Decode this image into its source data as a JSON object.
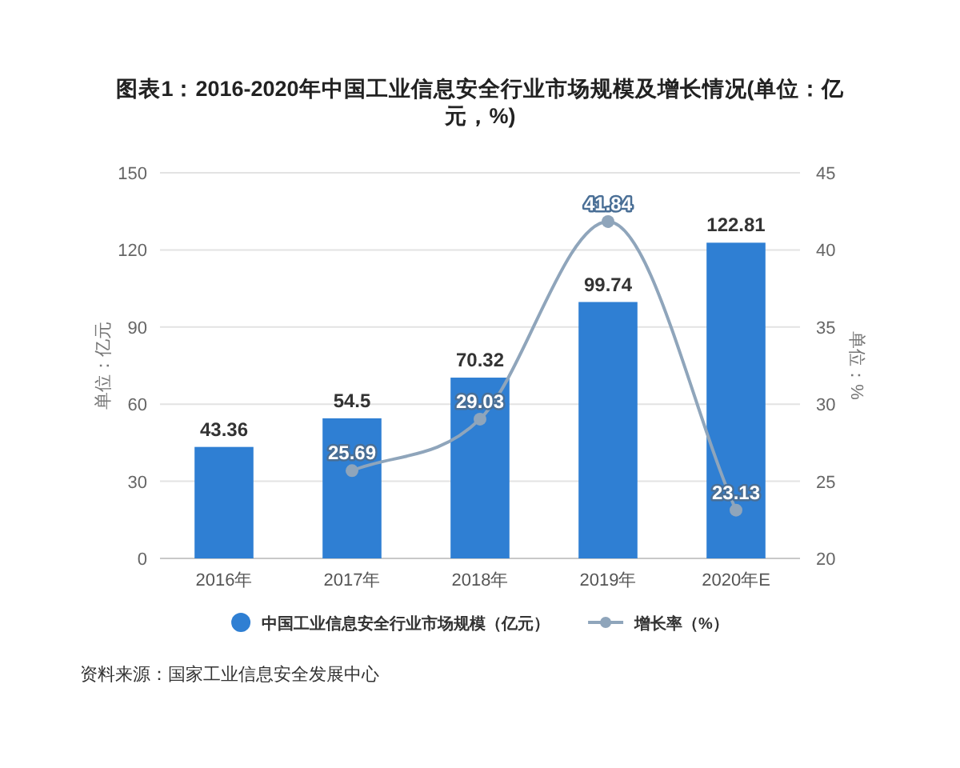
{
  "chart_data": {
    "type": "bar",
    "title": "图表1：2016-2020年中国工业信息安全行业市场规模及增长情况(单位：亿元，%)",
    "categories": [
      "2016年",
      "2017年",
      "2018年",
      "2019年",
      "2020年E"
    ],
    "series": [
      {
        "name": "中国工业信息安全行业市场规模（亿元）",
        "color": "#2f7fd3",
        "values": [
          43.36,
          54.5,
          70.32,
          99.74,
          122.81
        ]
      },
      {
        "name": "增长率（%）",
        "type": "line",
        "axis": "y2",
        "color": "#8fa5bb",
        "marker": "circle",
        "line_style": "solid",
        "values": [
          null,
          25.69,
          29.03,
          41.84,
          23.13
        ]
      }
    ],
    "ylabel": "单位：亿元",
    "y2label": "单位：%",
    "ylim": [
      0,
      150
    ],
    "yticks": [
      0,
      30,
      60,
      90,
      120,
      150
    ],
    "y2lim": [
      20,
      45
    ],
    "y2ticks": [
      20,
      25,
      30,
      35,
      40,
      45
    ],
    "grid": "y",
    "legend": "bottom",
    "data_labels": true,
    "annotations": [
      "资料来源：国家工业信息安全发展中心"
    ]
  }
}
